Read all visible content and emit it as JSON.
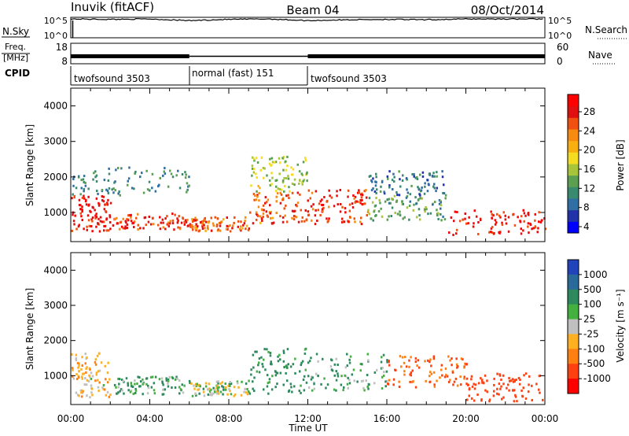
{
  "header": {
    "title_left": "Inuvik (fitACF)",
    "title_center": "Beam 04",
    "title_right": "08/Oct/2014"
  },
  "noise_panel": {
    "left_label": "N.Sky",
    "right_label": "N.Search",
    "left_ticks": [
      "10^5",
      "10^0"
    ],
    "right_ticks": [
      "10^5",
      "10^0"
    ]
  },
  "freq_panel": {
    "left_label_1": "Freq.",
    "left_label_2": "[MHz]",
    "left_ticks": [
      "18",
      "8"
    ],
    "right_label": "Nave",
    "right_ticks": [
      "60",
      "0"
    ]
  },
  "cpid": {
    "label": "CPID",
    "segments": [
      {
        "name": "twofsound 3503",
        "start": 0,
        "end": 6
      },
      {
        "name": "normal (fast) 151",
        "start": 6,
        "end": 12
      },
      {
        "name": "twofsound 3503",
        "start": 12,
        "end": 24
      }
    ]
  },
  "x_axis": {
    "label": "Time UT",
    "ticks": [
      "00:00",
      "04:00",
      "08:00",
      "12:00",
      "16:00",
      "20:00",
      "00:00"
    ]
  },
  "power_colorbar": {
    "label": "Power [dB]",
    "ticks": [
      "28",
      "24",
      "20",
      "16",
      "12",
      "8",
      "4"
    ],
    "colors": [
      "#0000ff",
      "#2233aa",
      "#2f6fa3",
      "#3a8a70",
      "#5aa050",
      "#a8c43a",
      "#f6dc20",
      "#f7b010",
      "#f78a10",
      "#f05010",
      "#e01010",
      "#ff0000"
    ]
  },
  "velocity_colorbar": {
    "label": "Velocity [m s⁻¹]",
    "ticks": [
      "1000",
      "500",
      "100",
      "25",
      "-25",
      "-100",
      "-500",
      "-1000"
    ],
    "colors": [
      "#2244bb",
      "#2a6a9a",
      "#2e8a5e",
      "#44b040",
      "#c0c0c0",
      "#ffb020",
      "#ff8010",
      "#ff4010",
      "#ff0000"
    ]
  },
  "chart_data": [
    {
      "type": "line",
      "title": "Inuvik (fitACF) Beam 04 08/Oct/2014",
      "panel": "noise",
      "x_unit": "hours UT",
      "series": [
        {
          "name": "N.Sky",
          "x": [
            0,
            2,
            4,
            6,
            8,
            10,
            12,
            14,
            16,
            18,
            20,
            22,
            24
          ],
          "values": [
            4.6,
            4.5,
            4.6,
            4.2,
            4.5,
            4.6,
            4.2,
            4.4,
            4.5,
            4.4,
            4.6,
            4.6,
            4.6
          ]
        }
      ],
      "ylim": [
        0,
        5
      ]
    },
    {
      "type": "line",
      "panel": "frequency",
      "x_unit": "hours UT",
      "ylabel": "Freq. [MHz]",
      "series": [
        {
          "name": "Freq.",
          "x": [
            0,
            6,
            6.01,
            12,
            12.01,
            24
          ],
          "values": [
            10.5,
            10.5,
            10.4,
            10.4,
            10.5,
            10.5
          ]
        }
      ],
      "ylim": [
        8,
        18
      ]
    },
    {
      "type": "heatmap",
      "panel": "power",
      "xlabel": "Time UT",
      "ylabel": "Slant Range [km]",
      "xlim": [
        0,
        24
      ],
      "ylim": [
        180,
        4500
      ],
      "y_ticks": [
        1000,
        2000,
        3000,
        4000
      ],
      "bands": [
        {
          "t0": 0,
          "t1": 2,
          "r0": 500,
          "r1": 1500,
          "level": 28
        },
        {
          "t0": 2,
          "t1": 6,
          "r0": 550,
          "r1": 1000,
          "level": 26
        },
        {
          "t0": 6,
          "t1": 9,
          "r0": 500,
          "r1": 900,
          "level": 24
        },
        {
          "t0": 9,
          "t1": 12,
          "r0": 700,
          "r1": 1600,
          "level": 24
        },
        {
          "t0": 12,
          "t1": 15,
          "r0": 700,
          "r1": 1700,
          "level": 26
        },
        {
          "t0": 15,
          "t1": 19,
          "r0": 800,
          "r1": 1500,
          "level": 10
        },
        {
          "t0": 19,
          "t1": 24,
          "r0": 400,
          "r1": 1100,
          "level": 28
        },
        {
          "t0": 0,
          "t1": 6,
          "r0": 1500,
          "r1": 2300,
          "level": 8
        },
        {
          "t0": 9,
          "t1": 12,
          "r0": 1600,
          "r1": 2600,
          "level": 14
        },
        {
          "t0": 15,
          "t1": 19,
          "r0": 1500,
          "r1": 2200,
          "level": 6
        }
      ]
    },
    {
      "type": "heatmap",
      "panel": "velocity",
      "xlabel": "Time UT",
      "ylabel": "Slant Range [km]",
      "xlim": [
        0,
        24
      ],
      "ylim": [
        180,
        4500
      ],
      "y_ticks": [
        1000,
        2000,
        3000,
        4000
      ],
      "bands": [
        {
          "t0": 0,
          "t1": 2,
          "r0": 400,
          "r1": 1700,
          "value": -50
        },
        {
          "t0": 2,
          "t1": 6,
          "r0": 500,
          "r1": 1000,
          "value": 80
        },
        {
          "t0": 6,
          "t1": 9,
          "r0": 450,
          "r1": 900,
          "value": 0
        },
        {
          "t0": 9,
          "t1": 12,
          "r0": 500,
          "r1": 1800,
          "value": 120
        },
        {
          "t0": 12,
          "t1": 16,
          "r0": 600,
          "r1": 1700,
          "value": 60
        },
        {
          "t0": 16,
          "t1": 20,
          "r0": 700,
          "r1": 1600,
          "value": -300
        },
        {
          "t0": 20,
          "t1": 24,
          "r0": 300,
          "r1": 1100,
          "value": -400
        }
      ]
    }
  ]
}
